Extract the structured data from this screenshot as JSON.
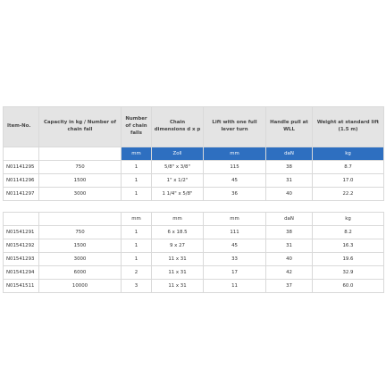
{
  "headers": [
    "Item-No.",
    "Capacity in kg / Number of chain fall",
    "Number of chain falls",
    "Chain dimensions d x p",
    "Lift with one full lever turn",
    "Handle pull at WLL",
    "Weight at standard lift (1.5 m)"
  ],
  "units_a": [
    "",
    "",
    "mm",
    "Zoll",
    "mm",
    "daN",
    "kg"
  ],
  "group_a": [
    [
      "N01141295",
      "750",
      "1",
      "5/8\" x 3/8\"",
      "115",
      "38",
      "8.7"
    ],
    [
      "N01141296",
      "1500",
      "1",
      "1\" x 1/2\"",
      "45",
      "31",
      "17.0"
    ],
    [
      "N01141297",
      "3000",
      "1",
      "1 1/4\" x 5/8\"",
      "36",
      "40",
      "22.2"
    ]
  ],
  "units_b": [
    "",
    "",
    "mm",
    "mm",
    "mm",
    "daN",
    "kg"
  ],
  "group_b": [
    [
      "N01541291",
      "750",
      "1",
      "6 x 18.5",
      "111",
      "38",
      "8.2"
    ],
    [
      "N01541292",
      "1500",
      "1",
      "9 x 27",
      "45",
      "31",
      "16.3"
    ],
    [
      "N01541293",
      "3000",
      "1",
      "11 x 31",
      "33",
      "40",
      "19.6"
    ],
    [
      "N01541294",
      "6000",
      "2",
      "11 x 31",
      "17",
      "42",
      "32.9"
    ],
    [
      "N01541511",
      "10000",
      "3",
      "11 x 31",
      "11",
      "37",
      "60.0"
    ]
  ],
  "colors": {
    "header_bg": "#e4e4e4",
    "unit_row_bg": "#2e6fc0",
    "border": "#d9d9d9"
  }
}
